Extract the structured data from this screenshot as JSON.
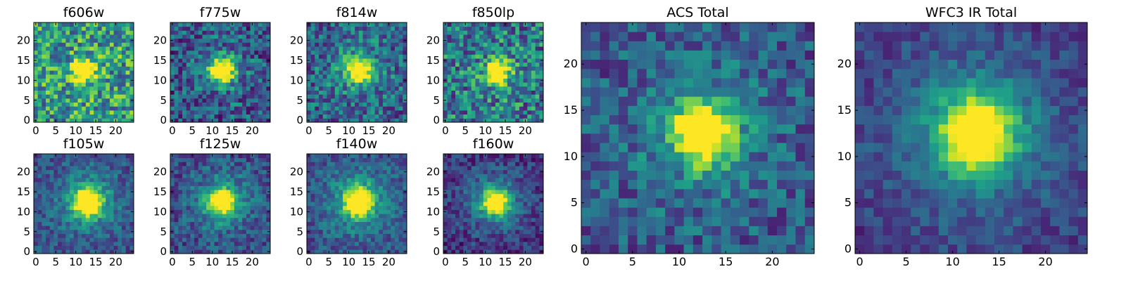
{
  "chart_data": [
    {
      "type": "heatmap",
      "title": "f606w",
      "xticks": [
        "0",
        "5",
        "10",
        "15",
        "20"
      ],
      "yticks": [
        "0",
        "5",
        "10",
        "15",
        "20"
      ],
      "xlim": [
        -0.5,
        24.5
      ],
      "ylim": [
        -0.5,
        24.5
      ],
      "grid": false,
      "colormap": "viridis",
      "source_center": [
        12,
        12.5
      ],
      "source_width": 2.0,
      "source_peak": 1.0,
      "background": 0.55,
      "noise": 0.34,
      "halo": 0.0
    },
    {
      "type": "heatmap",
      "title": "f775w",
      "xticks": [
        "0",
        "5",
        "10",
        "15",
        "20"
      ],
      "yticks": [
        "0",
        "5",
        "10",
        "15",
        "20"
      ],
      "xlim": [
        -0.5,
        24.5
      ],
      "ylim": [
        -0.5,
        24.5
      ],
      "grid": false,
      "colormap": "viridis",
      "source_center": [
        12.5,
        12.5
      ],
      "source_width": 2.0,
      "source_peak": 1.0,
      "background": 0.27,
      "noise": 0.26,
      "halo": 0.15
    },
    {
      "type": "heatmap",
      "title": "f814w",
      "xticks": [
        "0",
        "5",
        "10",
        "15",
        "20"
      ],
      "yticks": [
        "0",
        "5",
        "10",
        "15",
        "20"
      ],
      "xlim": [
        -0.5,
        24.5
      ],
      "ylim": [
        -0.5,
        24.5
      ],
      "grid": false,
      "colormap": "viridis",
      "source_center": [
        12.5,
        12.5
      ],
      "source_width": 2.0,
      "source_peak": 0.95,
      "background": 0.32,
      "noise": 0.26,
      "halo": 0.2
    },
    {
      "type": "heatmap",
      "title": "f850lp",
      "xticks": [
        "0",
        "5",
        "10",
        "15",
        "20"
      ],
      "yticks": [
        "0",
        "5",
        "10",
        "15",
        "20"
      ],
      "xlim": [
        -0.5,
        24.5
      ],
      "ylim": [
        -0.5,
        24.5
      ],
      "grid": false,
      "colormap": "viridis",
      "source_center": [
        13,
        12
      ],
      "source_width": 1.9,
      "source_peak": 0.95,
      "background": 0.4,
      "noise": 0.32,
      "halo": 0.1
    },
    {
      "type": "heatmap",
      "title": "f105w",
      "xticks": [
        "0",
        "5",
        "10",
        "15",
        "20"
      ],
      "yticks": [
        "0",
        "5",
        "10",
        "15",
        "20"
      ],
      "xlim": [
        -0.5,
        24.5
      ],
      "ylim": [
        -0.5,
        24.5
      ],
      "grid": false,
      "colormap": "viridis",
      "source_center": [
        13,
        12.5
      ],
      "source_width": 2.3,
      "source_peak": 1.0,
      "background": 0.24,
      "noise": 0.16,
      "halo": 0.3
    },
    {
      "type": "heatmap",
      "title": "f125w",
      "xticks": [
        "0",
        "5",
        "10",
        "15",
        "20"
      ],
      "yticks": [
        "0",
        "5",
        "10",
        "15",
        "20"
      ],
      "xlim": [
        -0.5,
        24.5
      ],
      "ylim": [
        -0.5,
        24.5
      ],
      "grid": false,
      "colormap": "viridis",
      "source_center": [
        12.5,
        12.5
      ],
      "source_width": 2.2,
      "source_peak": 0.85,
      "background": 0.22,
      "noise": 0.18,
      "halo": 0.3
    },
    {
      "type": "heatmap",
      "title": "f140w",
      "xticks": [
        "0",
        "5",
        "10",
        "15",
        "20"
      ],
      "yticks": [
        "0",
        "5",
        "10",
        "15",
        "20"
      ],
      "xlim": [
        -0.5,
        24.5
      ],
      "ylim": [
        -0.5,
        24.5
      ],
      "grid": false,
      "colormap": "viridis",
      "source_center": [
        12.5,
        12.5
      ],
      "source_width": 2.4,
      "source_peak": 0.95,
      "background": 0.24,
      "noise": 0.16,
      "halo": 0.3
    },
    {
      "type": "heatmap",
      "title": "f160w",
      "xticks": [
        "0",
        "5",
        "10",
        "15",
        "20"
      ],
      "yticks": [
        "0",
        "5",
        "10",
        "15",
        "20"
      ],
      "xlim": [
        -0.5,
        24.5
      ],
      "ylim": [
        -0.5,
        24.5
      ],
      "grid": false,
      "colormap": "viridis",
      "source_center": [
        12.5,
        12.5
      ],
      "source_width": 2.2,
      "source_peak": 0.85,
      "background": 0.14,
      "noise": 0.16,
      "halo": 0.32
    },
    {
      "type": "heatmap",
      "title": "ACS Total",
      "xticks": [
        "0",
        "5",
        "10",
        "15",
        "20"
      ],
      "yticks": [
        "0",
        "5",
        "10",
        "15",
        "20"
      ],
      "xlim": [
        -0.5,
        24.5
      ],
      "ylim": [
        -0.5,
        24.5
      ],
      "grid": false,
      "colormap": "viridis",
      "source_center": [
        12.5,
        12.5
      ],
      "source_width": 2.1,
      "source_peak": 1.0,
      "background": 0.27,
      "noise": 0.2,
      "halo": 0.22
    },
    {
      "type": "heatmap",
      "title": "WFC3 IR Total",
      "xticks": [
        "0",
        "5",
        "10",
        "15",
        "20"
      ],
      "yticks": [
        "0",
        "5",
        "10",
        "15",
        "20"
      ],
      "xlim": [
        -0.5,
        24.5
      ],
      "ylim": [
        -0.5,
        24.5
      ],
      "grid": false,
      "colormap": "viridis",
      "source_center": [
        12.5,
        12.5
      ],
      "source_width": 2.5,
      "source_peak": 0.95,
      "background": 0.16,
      "noise": 0.12,
      "halo": 0.35
    }
  ]
}
